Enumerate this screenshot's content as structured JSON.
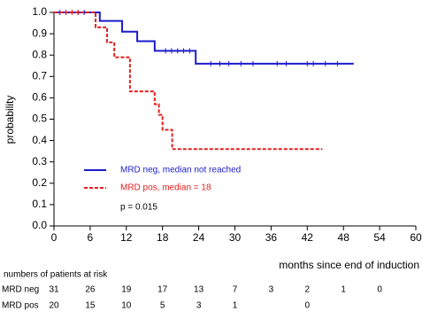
{
  "chart_data": {
    "type": "step",
    "y_label": "probability",
    "x_label": "months since end of induction",
    "annotation": "p = 0.015",
    "xlim": [
      0,
      60
    ],
    "xticks": [
      0,
      6,
      12,
      18,
      24,
      30,
      36,
      42,
      48,
      54,
      60
    ],
    "ylim": [
      0,
      1
    ],
    "yticks": [
      {
        "value": 0,
        "label": "0.0"
      },
      0.1,
      0.2,
      0.3,
      0.4,
      0.5,
      0.6,
      0.7,
      0.8,
      0.9,
      {
        "value": 1,
        "label": "1.0"
      }
    ],
    "series": [
      {
        "name": "MRD neg, median not reached",
        "color": "#1c1ccc",
        "dashed": false,
        "x": [
          0,
          7.6,
          11.3,
          13.8,
          16.7,
          23.5,
          49.7
        ],
        "values": [
          1,
          0.96,
          0.91,
          0.865,
          0.82,
          0.76,
          0.76
        ],
        "censored": [
          1,
          2,
          3,
          4,
          5,
          18.5,
          19.5,
          20.5,
          21.5,
          22.5,
          26,
          27.5,
          29,
          31,
          33,
          37,
          38.5,
          42,
          43,
          45,
          47
        ]
      },
      {
        "name": "MRD pos, median =  18",
        "color": "#e02020",
        "dashed": true,
        "x": [
          0,
          6.9,
          8.8,
          10,
          12.6,
          16.7,
          17.4,
          18,
          19.6,
          44.5
        ],
        "values": [
          1,
          0.93,
          0.86,
          0.79,
          0.63,
          0.57,
          0.52,
          0.45,
          0.36,
          0.36
        ],
        "censored": [
          2,
          3,
          4
        ]
      }
    ],
    "at_risk": {
      "title": "numbers of patients at risk",
      "times": [
        0,
        6,
        12,
        18,
        24,
        30,
        36,
        42,
        48,
        54
      ],
      "rows": [
        {
          "label": "MRD neg",
          "counts": [
            31,
            26,
            19,
            17,
            13,
            7,
            3,
            2,
            1,
            0
          ]
        },
        {
          "label": "MRD pos",
          "counts": [
            20,
            15,
            10,
            5,
            3,
            1,
            null,
            0
          ]
        }
      ]
    }
  }
}
